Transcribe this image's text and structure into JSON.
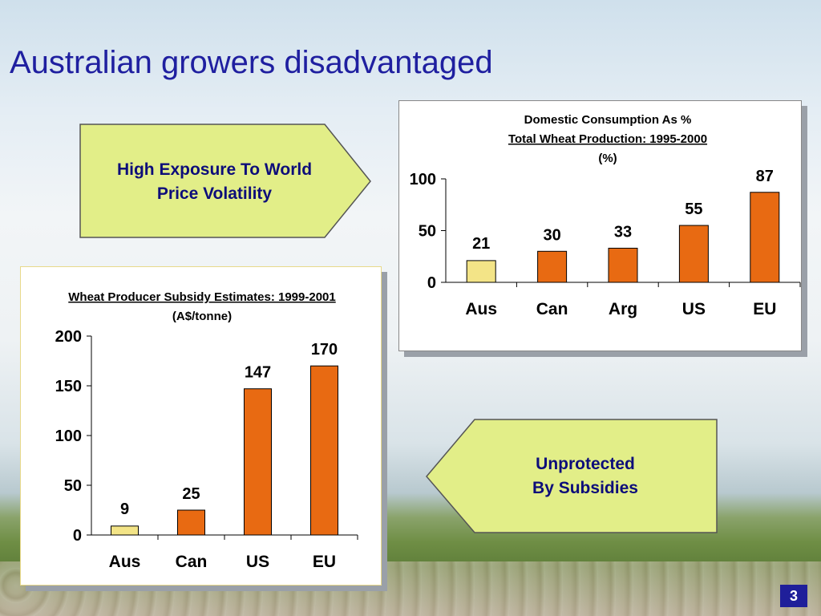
{
  "slide": {
    "title": "Australian growers disadvantaged",
    "page_number": "3",
    "arrow_top": {
      "line1": "High Exposure To World",
      "line2": "Price Volatility"
    },
    "arrow_bottom": {
      "line1": "Unprotected",
      "line2": "By Subsidies"
    }
  },
  "colors": {
    "australia_bar": "#f3e487",
    "other_bar": "#e86a12",
    "arrow_fill": "#e2ee88",
    "title": "#1f1fa0"
  },
  "chart_data": [
    {
      "type": "bar",
      "title_line1": "Domestic Consumption As %",
      "title_line2": "Total Wheat Production:  1995-2000",
      "title_line3": "(%)",
      "categories": [
        "Aus",
        "Can",
        "Arg",
        "US",
        "EU"
      ],
      "values": [
        21,
        30,
        33,
        55,
        87
      ],
      "data_labels": [
        "21",
        "30",
        "33",
        "55",
        "87"
      ],
      "yticks": [
        "0",
        "50",
        "100"
      ],
      "ylim": [
        0,
        100
      ],
      "grid": false
    },
    {
      "type": "bar",
      "title_line1": "Wheat Producer Subsidy Estimates: 1999-2001",
      "title_line2": "(A$/tonne)",
      "categories": [
        "Aus",
        "Can",
        "US",
        "EU"
      ],
      "values": [
        9,
        25,
        147,
        170
      ],
      "data_labels": [
        "9",
        "25",
        "147",
        "170"
      ],
      "yticks": [
        "0",
        "50",
        "100",
        "150",
        "200"
      ],
      "ylim": [
        0,
        200
      ],
      "grid": false
    }
  ]
}
